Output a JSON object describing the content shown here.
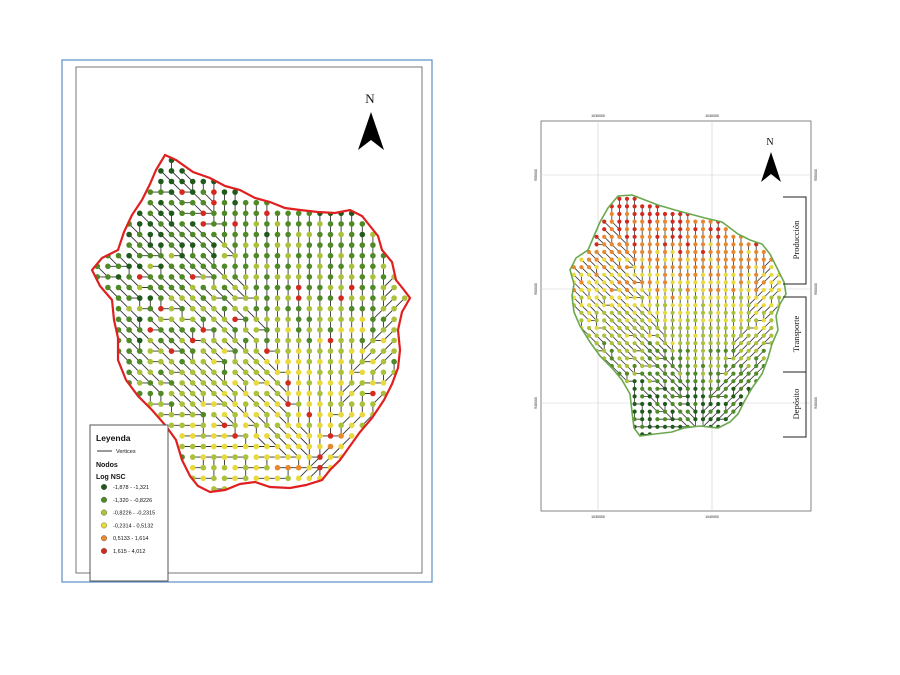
{
  "left_map": {
    "north_label": "N",
    "legend": {
      "title": "Leyenda",
      "vertices_label": "Vertices",
      "nodes_label": "Nodos",
      "field_label": "Log NSC",
      "classes": [
        {
          "label": "-1,878 - -1,321",
          "color": "#1f5a1a"
        },
        {
          "label": "-1,320 - -0,8226",
          "color": "#4f8a26"
        },
        {
          "label": "-0,8226 - -0,2315",
          "color": "#a9c23a"
        },
        {
          "label": "-0,2314 - 0,5132",
          "color": "#e8d93c"
        },
        {
          "label": "0,5133 - 1,614",
          "color": "#e8872e"
        },
        {
          "label": "1,615 - 4,012",
          "color": "#d42a1e"
        }
      ]
    },
    "boundary_color": "#e02020"
  },
  "right_map": {
    "north_label": "N",
    "zones": [
      "Producción",
      "Transporte",
      "Depósito"
    ],
    "x_ticks": [
      "1030000",
      "1040000"
    ],
    "y_ticks": [
      "955000",
      "950000",
      "945000"
    ],
    "boundary_color": "#6aa84f"
  }
}
